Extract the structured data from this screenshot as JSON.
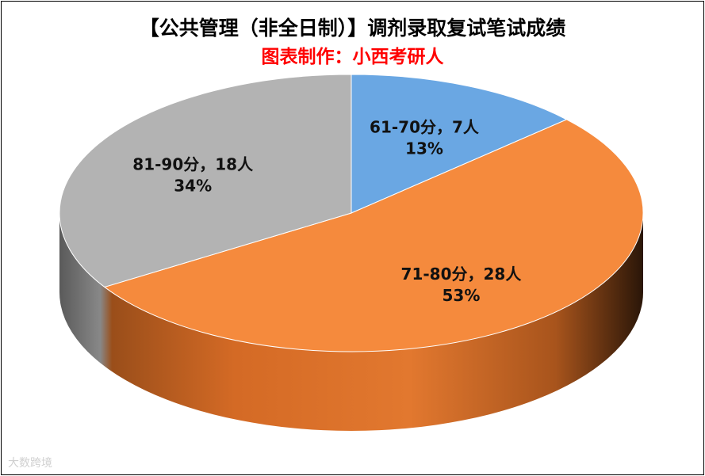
{
  "chart_data": {
    "type": "pie",
    "title": "【公共管理（非全日制）】调剂录取复试笔试成绩",
    "subtitle": "图表制作：小西考研人",
    "slices": [
      {
        "label": "61-70分，7人",
        "percent": "13%",
        "value": 7,
        "color": "#6aa7e3"
      },
      {
        "label": "71-80分，28人",
        "percent": "53%",
        "value": 28,
        "color": "#f58a3d"
      },
      {
        "label": "81-90分，18人",
        "percent": "34%",
        "value": 18,
        "color": "#b3b3b3"
      }
    ]
  },
  "colors": {
    "title": "#000000",
    "subtitle": "#ff0000"
  },
  "watermark": "大数跨境"
}
